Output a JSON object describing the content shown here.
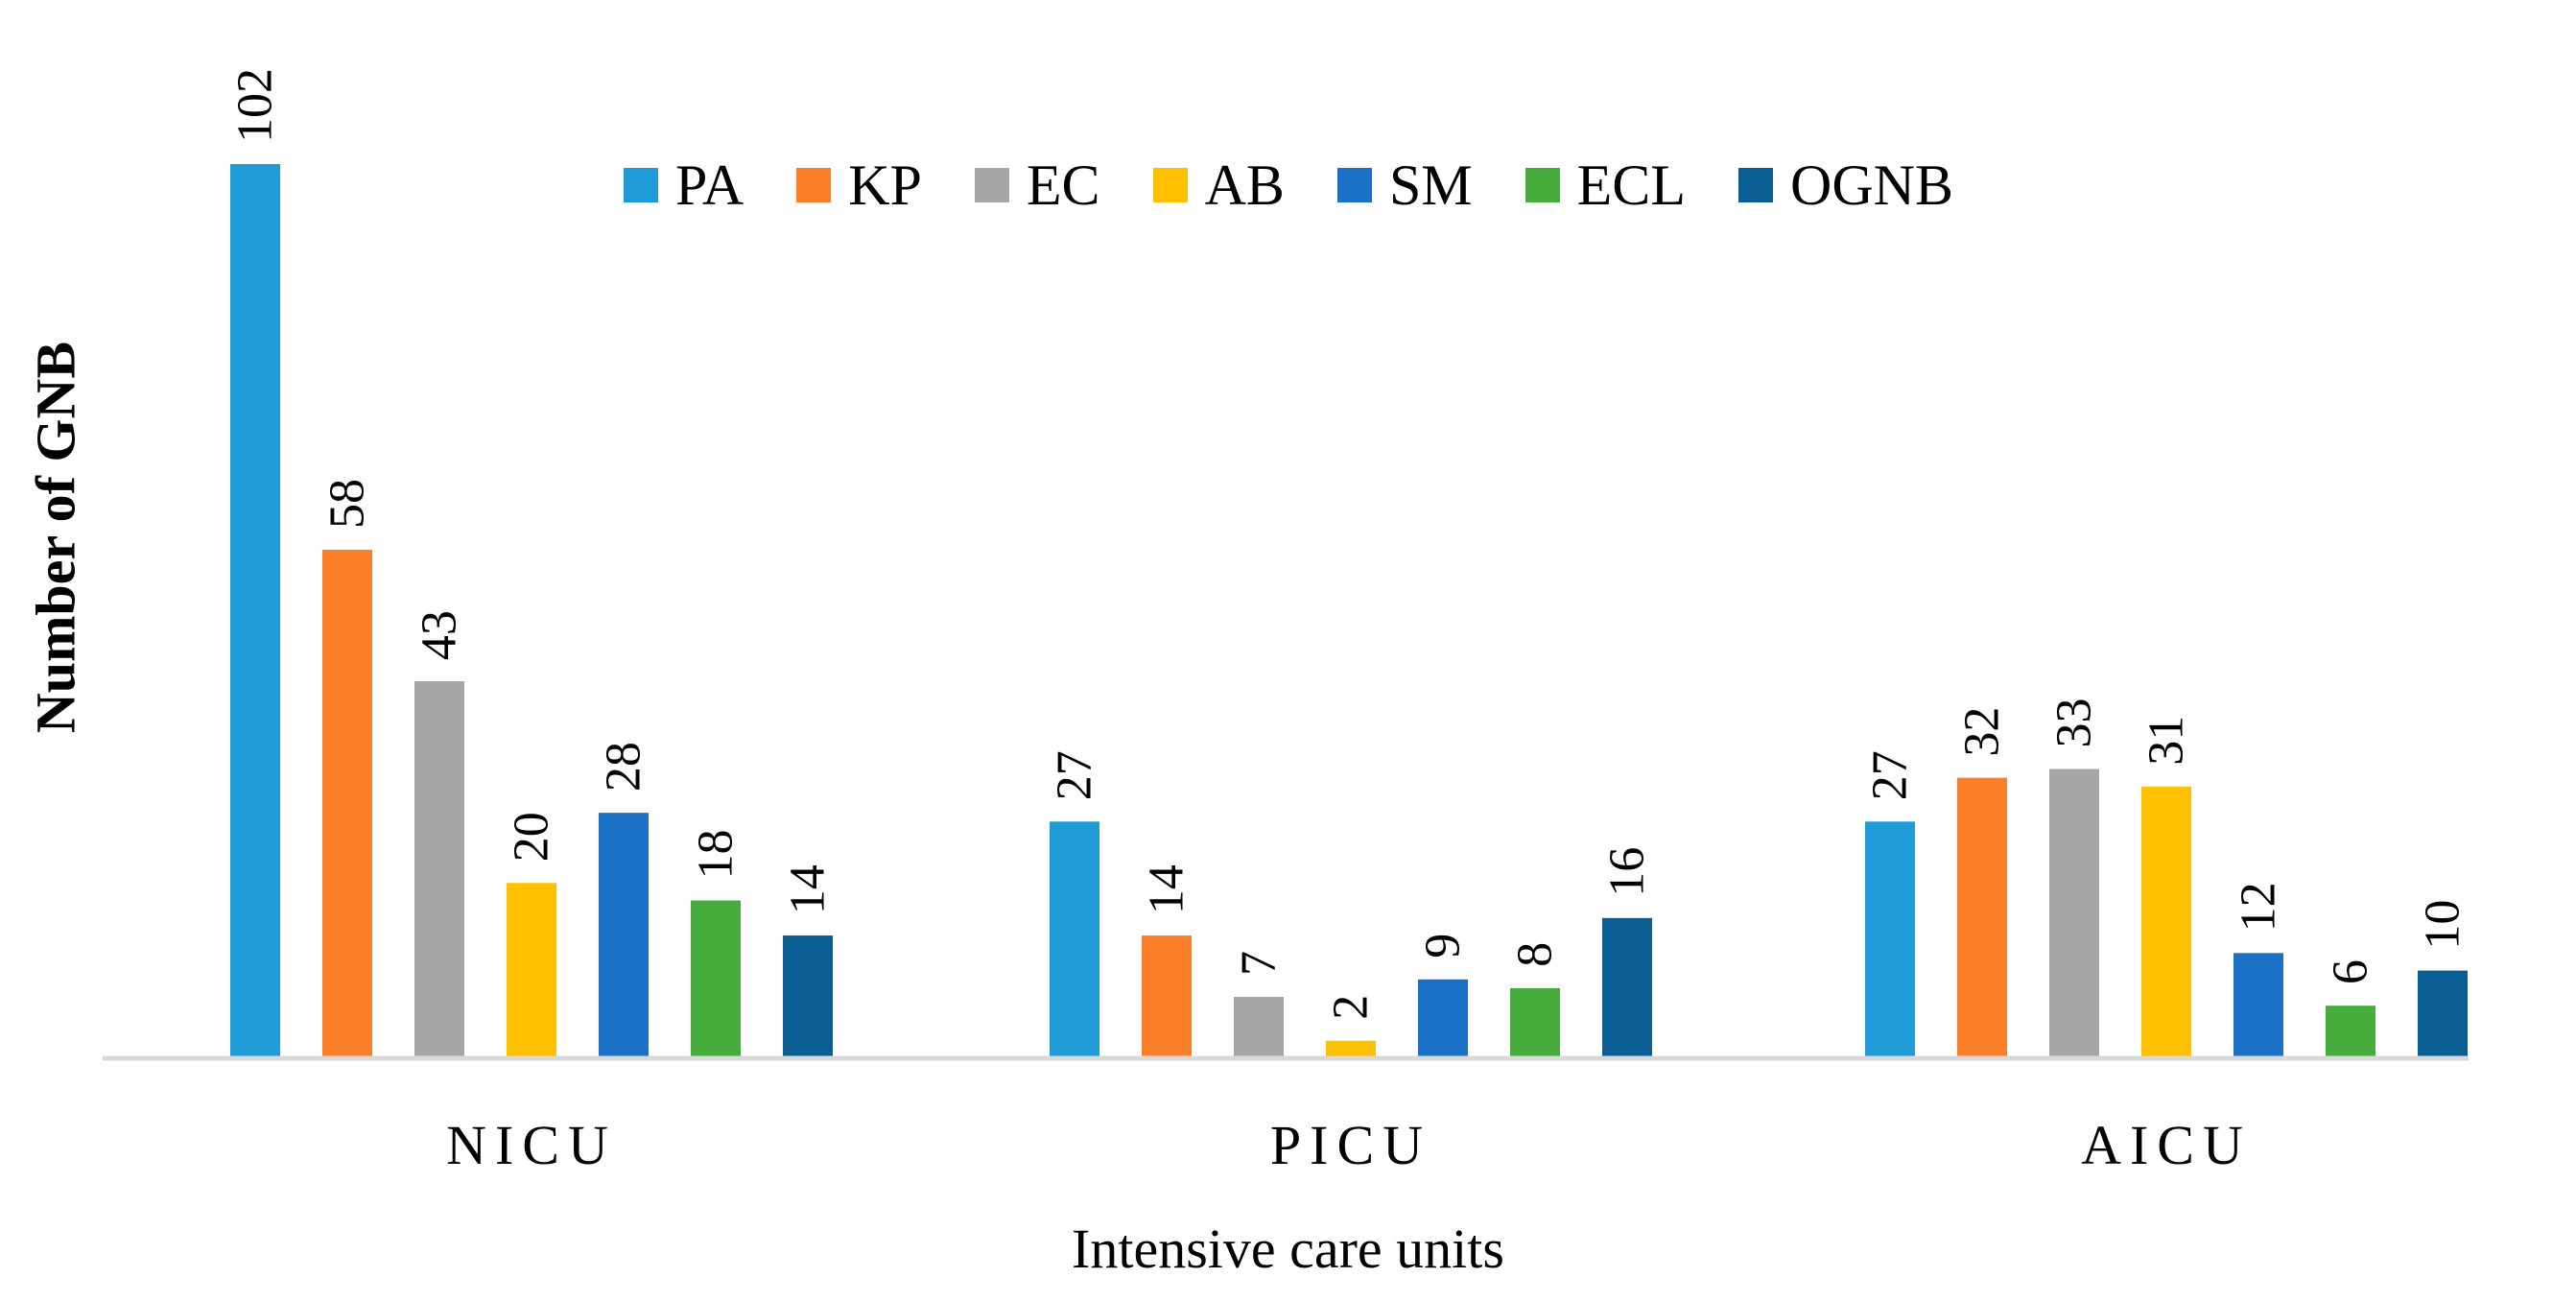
{
  "chart_data": {
    "type": "bar",
    "categories": [
      "NICU",
      "PICU",
      "AICU"
    ],
    "series": [
      {
        "name": "PA",
        "color": "#1f9bd7",
        "values": [
          102,
          27,
          27
        ]
      },
      {
        "name": "KP",
        "color": "#fb7f29",
        "values": [
          58,
          14,
          32
        ]
      },
      {
        "name": "EC",
        "color": "#a6a6a6",
        "values": [
          43,
          7,
          33
        ]
      },
      {
        "name": "AB",
        "color": "#ffc000",
        "values": [
          20,
          2,
          31
        ]
      },
      {
        "name": "SM",
        "color": "#1a71c6",
        "values": [
          28,
          9,
          12
        ]
      },
      {
        "name": "ECL",
        "color": "#46ad3d",
        "values": [
          18,
          8,
          6
        ]
      },
      {
        "name": "OGNB",
        "color": "#0a5e94",
        "values": [
          14,
          16,
          10
        ]
      }
    ],
    "title": "",
    "xlabel": "Intensive care units",
    "ylabel": "Number of GNB",
    "ylim": [
      0,
      102
    ],
    "grid": false,
    "legend": "top"
  }
}
